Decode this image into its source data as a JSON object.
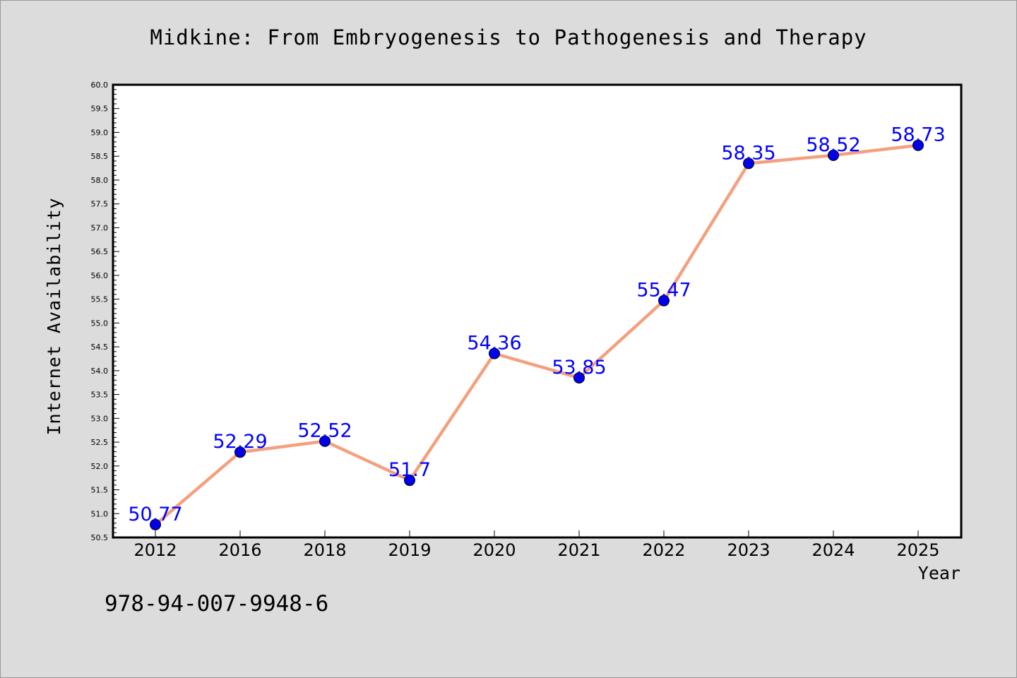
{
  "chart_data": {
    "type": "line",
    "title": "Midkine: From Embryogenesis to Pathogenesis and Therapy",
    "xlabel": "Year",
    "ylabel": "Internet Availability",
    "categories": [
      "2012",
      "2016",
      "2018",
      "2019",
      "2020",
      "2021",
      "2022",
      "2023",
      "2024",
      "2025"
    ],
    "values": [
      50.77,
      52.29,
      52.52,
      51.7,
      54.36,
      53.85,
      55.47,
      58.35,
      58.52,
      58.73
    ],
    "data_labels": [
      "50.77",
      "52.29",
      "52.52",
      "51.7",
      "54.36",
      "53.85",
      "55.47",
      "58.35",
      "58.52",
      "58.73"
    ],
    "ylim": [
      50.5,
      60.0
    ],
    "ytick_step": 0.5,
    "grid": false,
    "line_color": "#f4a07e",
    "marker_color": "#0000ee",
    "label_color": "#0000ff"
  },
  "footer": {
    "isbn": "978-94-007-9948-6"
  }
}
